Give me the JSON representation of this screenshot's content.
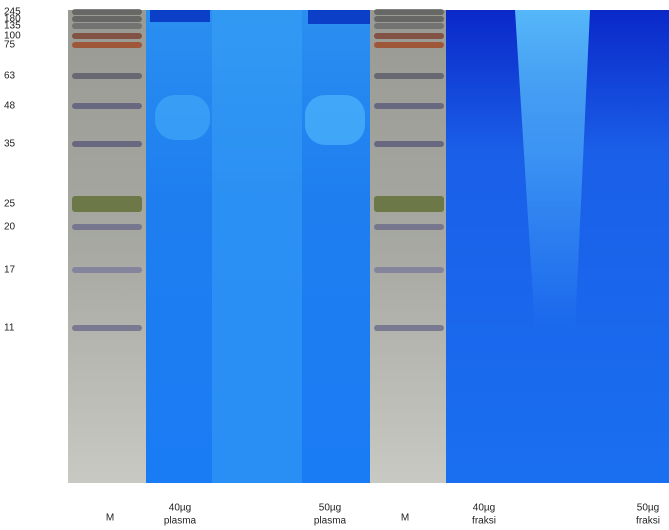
{
  "markers": [
    "245",
    "180",
    "135",
    "100",
    "75",
    "63",
    "48",
    "35",
    "25",
    "20",
    "17",
    "11"
  ],
  "lanes": [
    {
      "amount": "M"
    },
    {
      "amount": "40µg",
      "sample": "plasma"
    },
    {
      "amount": "50µg",
      "sample": "plasma"
    },
    {
      "amount": "M"
    },
    {
      "amount": "40µg",
      "sample": "fraksi"
    },
    {
      "amount": "50µg",
      "sample": "fraksi"
    }
  ]
}
